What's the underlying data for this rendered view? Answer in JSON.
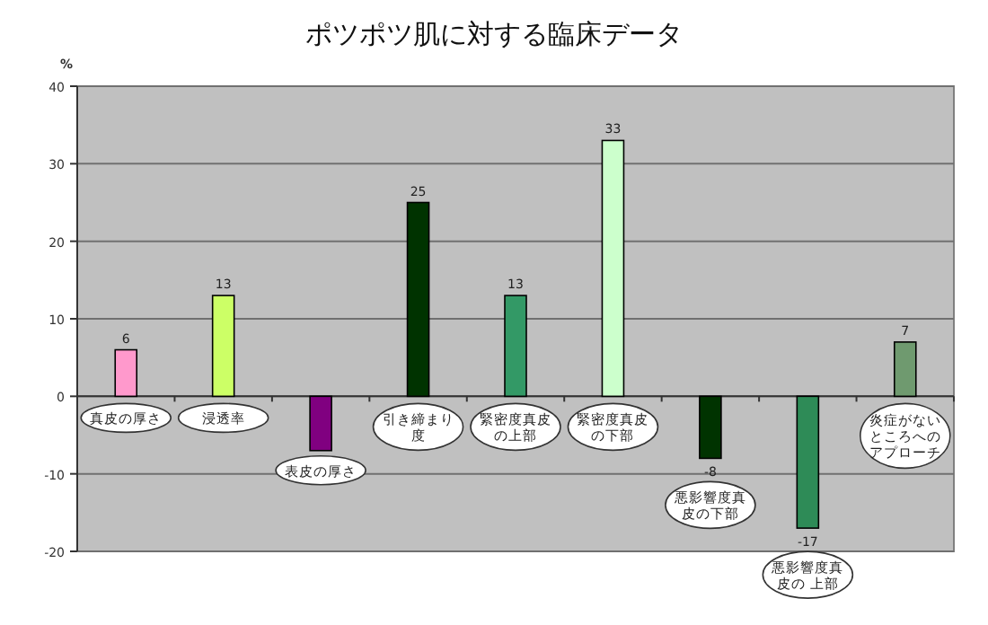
{
  "chart_data": {
    "type": "bar",
    "title": "ポツポツ肌に対する臨床データ",
    "ylabel": "%",
    "categories": [
      "真皮の厚さ",
      "浸透率",
      "表皮の厚さ",
      "引き締まり度",
      "緊密度真皮の上部",
      "緊密度真皮の下部",
      "悪影響度真皮の下部",
      "悪影響度真皮の 上部",
      "炎症がないところへのアプローチ"
    ],
    "values": [
      6,
      13,
      -7,
      25,
      13,
      33,
      -8,
      -17,
      7
    ],
    "colors": [
      "#ff99cc",
      "#ccff66",
      "#800080",
      "#003300",
      "#339966",
      "#ccffcc",
      "#003300",
      "#2e8b57",
      "#6f9a6f"
    ],
    "value_labels": [
      "6",
      "13",
      null,
      "25",
      "13",
      "33",
      "-8",
      "-17",
      "7"
    ],
    "ylim": [
      -20,
      40
    ],
    "yticks": [
      -20,
      -10,
      0,
      10,
      20,
      30,
      40
    ],
    "grid": "y"
  }
}
